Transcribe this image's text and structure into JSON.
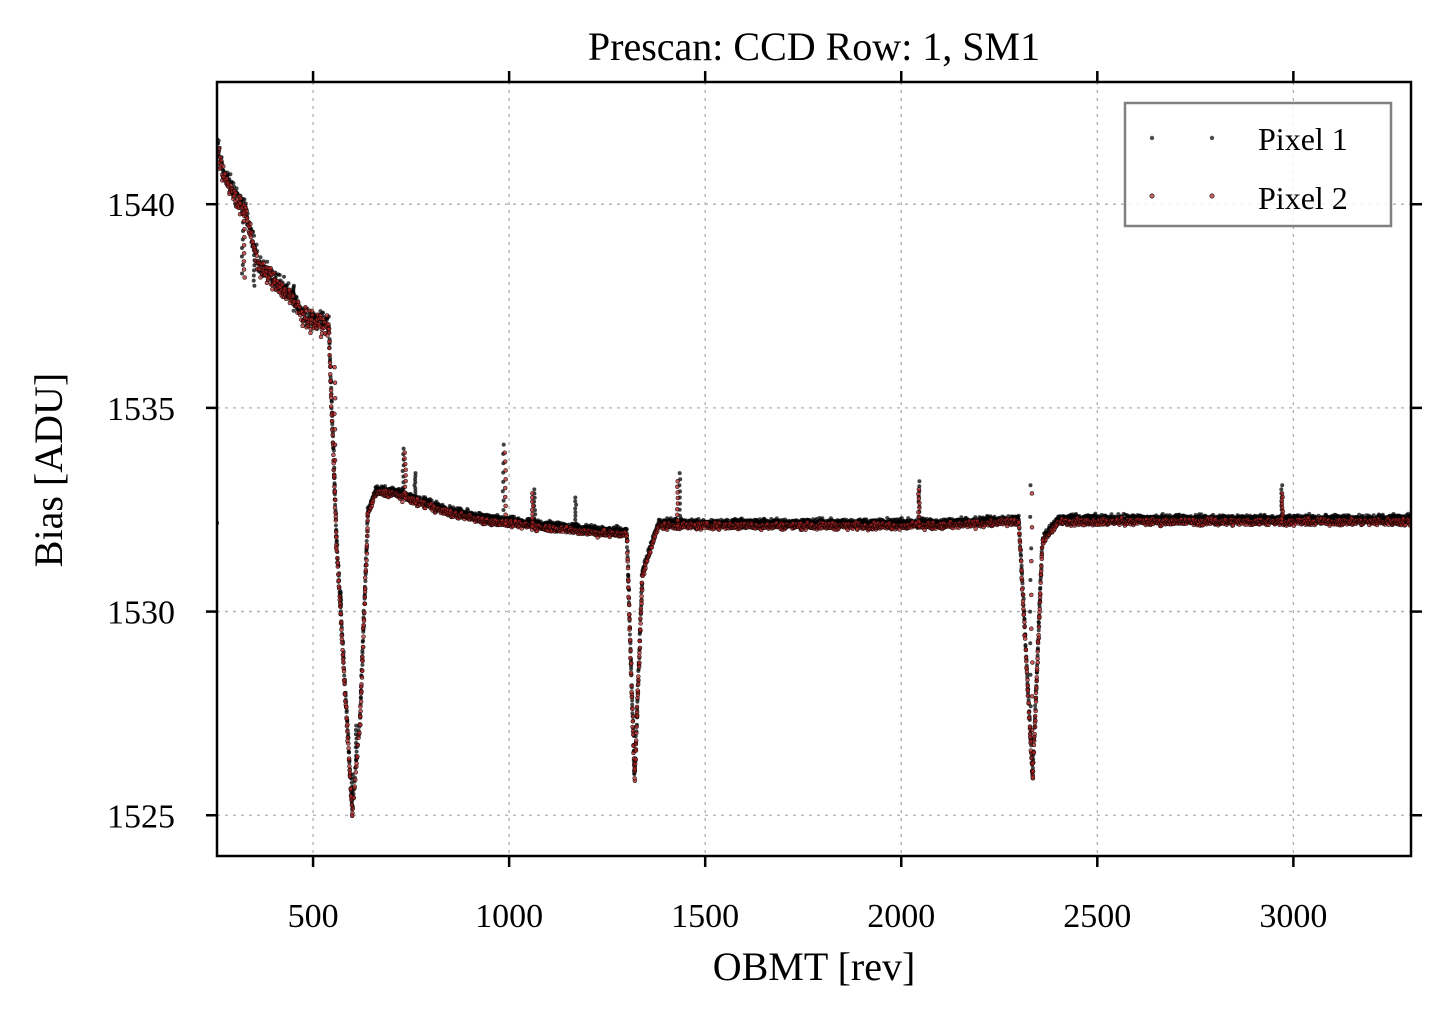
{
  "chart_data": {
    "type": "scatter",
    "title": "Prescan: CCD Row: 1, SM1",
    "xlabel": "OBMT [rev]",
    "ylabel": "Bias [ADU]",
    "xlim": [
      255,
      3300
    ],
    "ylim": [
      1524,
      1543
    ],
    "xticks": [
      500,
      1000,
      1500,
      2000,
      2500,
      3000
    ],
    "yticks": [
      1525,
      1530,
      1535,
      1540
    ],
    "grid": true,
    "legend_position": "top-right",
    "series": [
      {
        "name": "Pixel 1",
        "color": "#000000",
        "profile": [
          [
            255,
            1541.5
          ],
          [
            275,
            1540.7
          ],
          [
            300,
            1540.3
          ],
          [
            330,
            1539.8
          ],
          [
            360,
            1538.6
          ],
          [
            400,
            1538.2
          ],
          [
            440,
            1537.8
          ],
          [
            470,
            1537.4
          ],
          [
            500,
            1537.2
          ],
          [
            540,
            1537.1
          ],
          [
            560,
            1531.8
          ],
          [
            600,
            1525.2
          ],
          [
            620,
            1527.5
          ],
          [
            640,
            1532.5
          ],
          [
            660,
            1533.0
          ],
          [
            700,
            1533.0
          ],
          [
            760,
            1532.8
          ],
          [
            850,
            1532.5
          ],
          [
            950,
            1532.3
          ],
          [
            1050,
            1532.2
          ],
          [
            1150,
            1532.1
          ],
          [
            1250,
            1532.0
          ],
          [
            1300,
            1532.0
          ],
          [
            1320,
            1526.0
          ],
          [
            1340,
            1531.0
          ],
          [
            1380,
            1532.2
          ],
          [
            1500,
            1532.2
          ],
          [
            1700,
            1532.2
          ],
          [
            1900,
            1532.2
          ],
          [
            2100,
            1532.2
          ],
          [
            2300,
            1532.3
          ],
          [
            2335,
            1526.0
          ],
          [
            2360,
            1531.8
          ],
          [
            2400,
            1532.3
          ],
          [
            2600,
            1532.3
          ],
          [
            2800,
            1532.3
          ],
          [
            3000,
            1532.3
          ],
          [
            3300,
            1532.3
          ]
        ],
        "spikes": [
          [
            320,
            1538.3
          ],
          [
            350,
            1538.0
          ],
          [
            450,
            1538.0
          ],
          [
            730,
            1534.0
          ],
          [
            760,
            1533.4
          ],
          [
            985,
            1534.1
          ],
          [
            1065,
            1533.0
          ],
          [
            1170,
            1532.8
          ],
          [
            1435,
            1533.4
          ],
          [
            2045,
            1533.2
          ],
          [
            2330,
            1533.1
          ],
          [
            2970,
            1533.1
          ],
          [
            600,
            1526.0
          ],
          [
            610,
            1527.2
          ],
          [
            570,
            1530.5
          ]
        ]
      },
      {
        "name": "Pixel 2",
        "color": "#b22222",
        "profile": [
          [
            255,
            1541.3
          ],
          [
            275,
            1540.6
          ],
          [
            300,
            1540.2
          ],
          [
            330,
            1539.7
          ],
          [
            360,
            1538.5
          ],
          [
            400,
            1538.1
          ],
          [
            440,
            1537.7
          ],
          [
            470,
            1537.3
          ],
          [
            500,
            1537.1
          ],
          [
            540,
            1537.0
          ],
          [
            560,
            1531.6
          ],
          [
            600,
            1525.0
          ],
          [
            620,
            1527.3
          ],
          [
            640,
            1532.4
          ],
          [
            660,
            1532.9
          ],
          [
            700,
            1532.9
          ],
          [
            760,
            1532.7
          ],
          [
            850,
            1532.4
          ],
          [
            950,
            1532.2
          ],
          [
            1050,
            1532.1
          ],
          [
            1150,
            1532.0
          ],
          [
            1250,
            1531.9
          ],
          [
            1300,
            1531.9
          ],
          [
            1320,
            1525.9
          ],
          [
            1340,
            1530.9
          ],
          [
            1380,
            1532.1
          ],
          [
            1500,
            1532.1
          ],
          [
            1700,
            1532.1
          ],
          [
            1900,
            1532.1
          ],
          [
            2100,
            1532.1
          ],
          [
            2300,
            1532.2
          ],
          [
            2335,
            1525.9
          ],
          [
            2360,
            1531.7
          ],
          [
            2400,
            1532.2
          ],
          [
            2600,
            1532.2
          ],
          [
            2800,
            1532.2
          ],
          [
            3000,
            1532.2
          ],
          [
            3300,
            1532.2
          ]
        ],
        "spikes": [
          [
            325,
            1538.2
          ],
          [
            440,
            1537.9
          ],
          [
            735,
            1533.9
          ],
          [
            990,
            1533.9
          ],
          [
            1060,
            1532.9
          ],
          [
            1430,
            1533.2
          ],
          [
            2045,
            1533.0
          ],
          [
            2333,
            1532.9
          ],
          [
            2972,
            1532.9
          ],
          [
            555,
            1536.0
          ]
        ]
      }
    ]
  }
}
